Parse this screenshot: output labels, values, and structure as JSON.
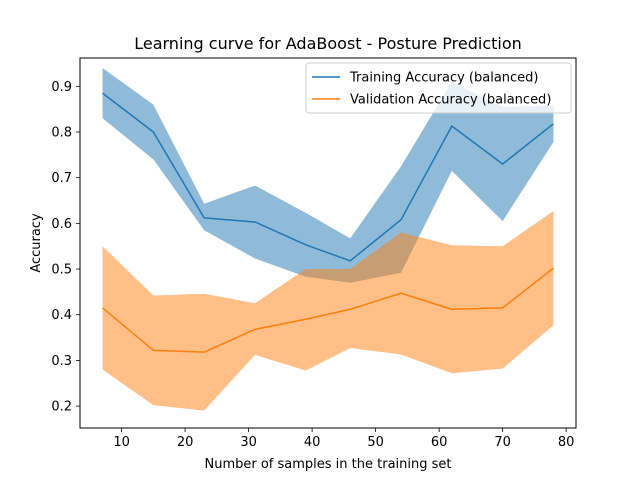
{
  "chart_data": {
    "type": "line",
    "title": "Learning curve for AdaBoost - Posture Prediction",
    "xlabel": "Number of samples in the training set",
    "ylabel": "Accuracy",
    "xlim": [
      3.45,
      81.55
    ],
    "ylim": [
      0.152,
      0.962
    ],
    "xticks": [
      10,
      20,
      30,
      40,
      50,
      60,
      70,
      80
    ],
    "yticks": [
      0.2,
      0.3,
      0.4,
      0.5,
      0.6,
      0.7,
      0.8,
      0.9
    ],
    "grid": false,
    "legend_position": "upper right",
    "x": [
      7,
      15,
      23,
      31,
      39,
      46,
      54,
      62,
      70,
      78
    ],
    "series": [
      {
        "name": "Training Accuracy (balanced)",
        "color": "#1f77b4",
        "band_color": "#1f77b4",
        "mean": [
          0.885,
          0.8,
          0.612,
          0.603,
          0.553,
          0.518,
          0.608,
          0.813,
          0.73,
          0.818
        ],
        "upper": [
          0.94,
          0.86,
          0.643,
          0.683,
          0.623,
          0.567,
          0.725,
          0.91,
          0.855,
          0.858
        ],
        "lower": [
          0.83,
          0.74,
          0.585,
          0.523,
          0.483,
          0.47,
          0.492,
          0.715,
          0.605,
          0.778
        ]
      },
      {
        "name": "Validation Accuracy (balanced)",
        "color": "#ff7f0e",
        "band_color": "#ff7f0e",
        "mean": [
          0.415,
          0.322,
          0.318,
          0.368,
          0.39,
          0.412,
          0.447,
          0.412,
          0.415,
          0.502
        ],
        "upper": [
          0.55,
          0.442,
          0.446,
          0.425,
          0.5,
          0.5,
          0.58,
          0.552,
          0.55,
          0.627
        ],
        "lower": [
          0.28,
          0.202,
          0.19,
          0.312,
          0.278,
          0.327,
          0.313,
          0.272,
          0.282,
          0.377
        ]
      }
    ]
  }
}
